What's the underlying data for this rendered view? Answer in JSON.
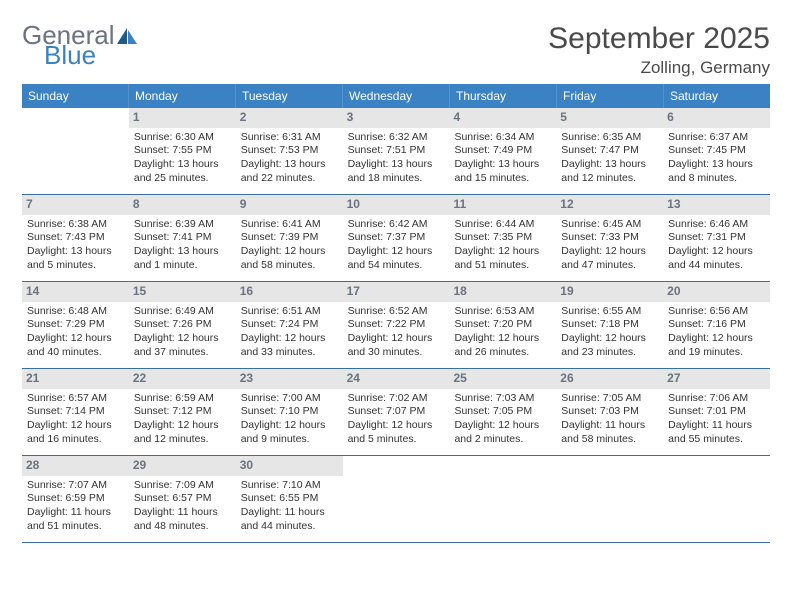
{
  "brand": {
    "part1": "General",
    "part2": "Blue"
  },
  "title": "September 2025",
  "location": "Zolling, Germany",
  "colors": {
    "header_bg": "#3b82c4",
    "header_text": "#ffffff",
    "daynum_bg": "#e6e6e6",
    "daynum_text": "#6b7280",
    "row_border": "#3b6fa0",
    "body_text": "#333333",
    "logo_gray": "#6b7280",
    "logo_blue": "#3b82c4"
  },
  "typography": {
    "title_fontsize": 30,
    "location_fontsize": 17,
    "dow_fontsize": 12,
    "daynum_fontsize": 12,
    "body_fontsize": 10.5
  },
  "daysOfWeek": [
    "Sunday",
    "Monday",
    "Tuesday",
    "Wednesday",
    "Thursday",
    "Friday",
    "Saturday"
  ],
  "weeks": [
    [
      null,
      {
        "n": "1",
        "sunrise": "Sunrise: 6:30 AM",
        "sunset": "Sunset: 7:55 PM",
        "daylight": "Daylight: 13 hours and 25 minutes."
      },
      {
        "n": "2",
        "sunrise": "Sunrise: 6:31 AM",
        "sunset": "Sunset: 7:53 PM",
        "daylight": "Daylight: 13 hours and 22 minutes."
      },
      {
        "n": "3",
        "sunrise": "Sunrise: 6:32 AM",
        "sunset": "Sunset: 7:51 PM",
        "daylight": "Daylight: 13 hours and 18 minutes."
      },
      {
        "n": "4",
        "sunrise": "Sunrise: 6:34 AM",
        "sunset": "Sunset: 7:49 PM",
        "daylight": "Daylight: 13 hours and 15 minutes."
      },
      {
        "n": "5",
        "sunrise": "Sunrise: 6:35 AM",
        "sunset": "Sunset: 7:47 PM",
        "daylight": "Daylight: 13 hours and 12 minutes."
      },
      {
        "n": "6",
        "sunrise": "Sunrise: 6:37 AM",
        "sunset": "Sunset: 7:45 PM",
        "daylight": "Daylight: 13 hours and 8 minutes."
      }
    ],
    [
      {
        "n": "7",
        "sunrise": "Sunrise: 6:38 AM",
        "sunset": "Sunset: 7:43 PM",
        "daylight": "Daylight: 13 hours and 5 minutes."
      },
      {
        "n": "8",
        "sunrise": "Sunrise: 6:39 AM",
        "sunset": "Sunset: 7:41 PM",
        "daylight": "Daylight: 13 hours and 1 minute."
      },
      {
        "n": "9",
        "sunrise": "Sunrise: 6:41 AM",
        "sunset": "Sunset: 7:39 PM",
        "daylight": "Daylight: 12 hours and 58 minutes."
      },
      {
        "n": "10",
        "sunrise": "Sunrise: 6:42 AM",
        "sunset": "Sunset: 7:37 PM",
        "daylight": "Daylight: 12 hours and 54 minutes."
      },
      {
        "n": "11",
        "sunrise": "Sunrise: 6:44 AM",
        "sunset": "Sunset: 7:35 PM",
        "daylight": "Daylight: 12 hours and 51 minutes."
      },
      {
        "n": "12",
        "sunrise": "Sunrise: 6:45 AM",
        "sunset": "Sunset: 7:33 PM",
        "daylight": "Daylight: 12 hours and 47 minutes."
      },
      {
        "n": "13",
        "sunrise": "Sunrise: 6:46 AM",
        "sunset": "Sunset: 7:31 PM",
        "daylight": "Daylight: 12 hours and 44 minutes."
      }
    ],
    [
      {
        "n": "14",
        "sunrise": "Sunrise: 6:48 AM",
        "sunset": "Sunset: 7:29 PM",
        "daylight": "Daylight: 12 hours and 40 minutes."
      },
      {
        "n": "15",
        "sunrise": "Sunrise: 6:49 AM",
        "sunset": "Sunset: 7:26 PM",
        "daylight": "Daylight: 12 hours and 37 minutes."
      },
      {
        "n": "16",
        "sunrise": "Sunrise: 6:51 AM",
        "sunset": "Sunset: 7:24 PM",
        "daylight": "Daylight: 12 hours and 33 minutes."
      },
      {
        "n": "17",
        "sunrise": "Sunrise: 6:52 AM",
        "sunset": "Sunset: 7:22 PM",
        "daylight": "Daylight: 12 hours and 30 minutes."
      },
      {
        "n": "18",
        "sunrise": "Sunrise: 6:53 AM",
        "sunset": "Sunset: 7:20 PM",
        "daylight": "Daylight: 12 hours and 26 minutes."
      },
      {
        "n": "19",
        "sunrise": "Sunrise: 6:55 AM",
        "sunset": "Sunset: 7:18 PM",
        "daylight": "Daylight: 12 hours and 23 minutes."
      },
      {
        "n": "20",
        "sunrise": "Sunrise: 6:56 AM",
        "sunset": "Sunset: 7:16 PM",
        "daylight": "Daylight: 12 hours and 19 minutes."
      }
    ],
    [
      {
        "n": "21",
        "sunrise": "Sunrise: 6:57 AM",
        "sunset": "Sunset: 7:14 PM",
        "daylight": "Daylight: 12 hours and 16 minutes."
      },
      {
        "n": "22",
        "sunrise": "Sunrise: 6:59 AM",
        "sunset": "Sunset: 7:12 PM",
        "daylight": "Daylight: 12 hours and 12 minutes."
      },
      {
        "n": "23",
        "sunrise": "Sunrise: 7:00 AM",
        "sunset": "Sunset: 7:10 PM",
        "daylight": "Daylight: 12 hours and 9 minutes."
      },
      {
        "n": "24",
        "sunrise": "Sunrise: 7:02 AM",
        "sunset": "Sunset: 7:07 PM",
        "daylight": "Daylight: 12 hours and 5 minutes."
      },
      {
        "n": "25",
        "sunrise": "Sunrise: 7:03 AM",
        "sunset": "Sunset: 7:05 PM",
        "daylight": "Daylight: 12 hours and 2 minutes."
      },
      {
        "n": "26",
        "sunrise": "Sunrise: 7:05 AM",
        "sunset": "Sunset: 7:03 PM",
        "daylight": "Daylight: 11 hours and 58 minutes."
      },
      {
        "n": "27",
        "sunrise": "Sunrise: 7:06 AM",
        "sunset": "Sunset: 7:01 PM",
        "daylight": "Daylight: 11 hours and 55 minutes."
      }
    ],
    [
      {
        "n": "28",
        "sunrise": "Sunrise: 7:07 AM",
        "sunset": "Sunset: 6:59 PM",
        "daylight": "Daylight: 11 hours and 51 minutes."
      },
      {
        "n": "29",
        "sunrise": "Sunrise: 7:09 AM",
        "sunset": "Sunset: 6:57 PM",
        "daylight": "Daylight: 11 hours and 48 minutes."
      },
      {
        "n": "30",
        "sunrise": "Sunrise: 7:10 AM",
        "sunset": "Sunset: 6:55 PM",
        "daylight": "Daylight: 11 hours and 44 minutes."
      },
      null,
      null,
      null,
      null
    ]
  ]
}
